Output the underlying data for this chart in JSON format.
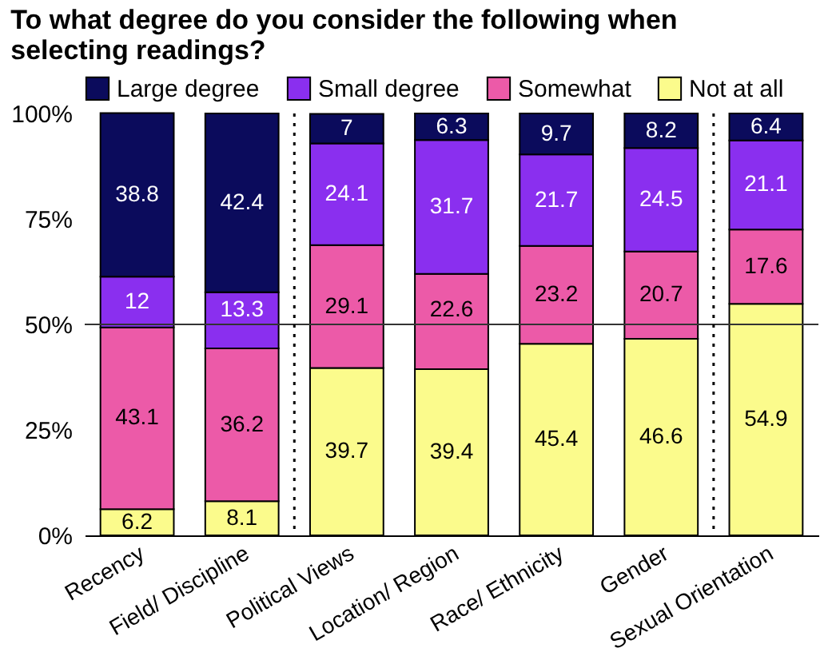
{
  "chart_data": {
    "type": "bar",
    "title": "To what degree do you consider the following when selecting readings?",
    "stacked": true,
    "categories": [
      "Recency",
      "Field/ Discipline",
      "Political Views",
      "Location/ Region",
      "Race/ Ethnicity",
      "Gender",
      "Sexual Orientation"
    ],
    "series": [
      {
        "name": "Not at all",
        "color": "#fbfb8c",
        "values": [
          6.2,
          8.1,
          39.7,
          39.4,
          45.4,
          46.6,
          54.9
        ]
      },
      {
        "name": "Somewhat",
        "color": "#ec5aa8",
        "values": [
          43.1,
          36.2,
          29.1,
          22.6,
          23.2,
          20.7,
          17.6
        ]
      },
      {
        "name": "Small degree",
        "color": "#8a2fef",
        "values": [
          12,
          13.3,
          24.1,
          31.7,
          21.7,
          24.5,
          21.1
        ]
      },
      {
        "name": "Large degree",
        "color": "#0b0b5c",
        "values": [
          38.8,
          42.4,
          7,
          6.3,
          9.7,
          8.2,
          6.4
        ]
      }
    ],
    "ylim": [
      0,
      100
    ],
    "yticks": [
      {
        "value": 0,
        "label": "0%"
      },
      {
        "value": 25,
        "label": "25%"
      },
      {
        "value": 50,
        "label": "50%"
      },
      {
        "value": 75,
        "label": "75%"
      },
      {
        "value": 100,
        "label": "100%"
      }
    ],
    "ref_lines": [
      {
        "axis": "y",
        "value": 50,
        "color": "#333333",
        "line_style": "solid"
      }
    ],
    "data_labels": true,
    "legend": "top left",
    "grid": false
  }
}
